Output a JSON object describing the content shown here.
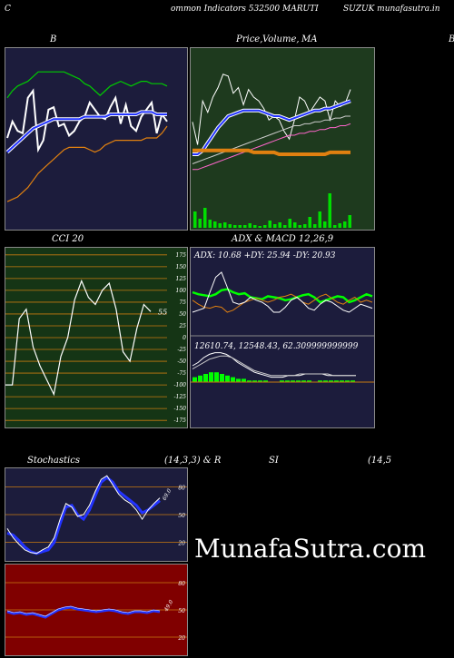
{
  "header": {
    "left": "C",
    "center": "ommon  Indicators 532500  MARUTI",
    "right": "SUZUK munafasutra.in"
  },
  "watermark": "MunafaSutra.com",
  "colors": {
    "panel_navy": "#1c1c3c",
    "panel_green": "#1e3a1e",
    "panel_darkgreen": "#153515",
    "panel_red": "#800000",
    "grid_orange": "#c87a10",
    "line_white": "#ffffff",
    "line_blue": "#2233ff",
    "line_green": "#00cc00",
    "line_orange": "#e08010"
  },
  "titles": {
    "bb": "B",
    "price": "Price,",
    "price_volume": "Volume,",
    "price_ma": "MA",
    "right_edge": "B",
    "cci": "CCI 20",
    "adx": "ADX  & MACD 12,26,9",
    "stoch": "Stochastics",
    "stoch_params": "(14,3,3) & R",
    "rsi": "SI",
    "rsi_params": "(14,5"
  },
  "chart_data": [
    {
      "type": "line",
      "name": "bollinger",
      "series": [
        {
          "color": "#ffffff",
          "values": [
            35,
            42,
            38,
            37,
            52,
            55,
            30,
            34,
            47,
            48,
            40,
            41,
            36,
            38,
            42,
            44,
            50,
            47,
            44,
            43,
            48,
            52,
            41,
            49,
            40,
            38,
            44,
            47,
            50,
            37,
            45,
            42
          ]
        },
        {
          "color": "#2233ff",
          "values": [
            29,
            31,
            33,
            35,
            37,
            39,
            40,
            41,
            42,
            43,
            43,
            43,
            43,
            43,
            43,
            44,
            44,
            44,
            44,
            44,
            45,
            45,
            45,
            45,
            45,
            45,
            46,
            46,
            46,
            45,
            45,
            45
          ]
        },
        {
          "color": "#00cc00",
          "values": [
            52,
            55,
            57,
            58,
            59,
            61,
            63,
            63,
            63,
            63,
            63,
            63,
            62,
            61,
            60,
            58,
            57,
            55,
            53,
            55,
            57,
            58,
            59,
            58,
            57,
            58,
            59,
            59,
            58,
            58,
            58,
            57
          ]
        },
        {
          "color": "#e08010",
          "values": [
            8,
            9,
            10,
            12,
            14,
            17,
            20,
            22,
            24,
            26,
            28,
            30,
            31,
            31,
            31,
            31,
            30,
            29,
            30,
            32,
            33,
            34,
            34,
            34,
            34,
            34,
            34,
            35,
            35,
            35,
            37,
            40
          ]
        }
      ]
    },
    {
      "type": "line",
      "name": "price_volume_ma",
      "series": [
        {
          "color": "#ffffff",
          "values": [
            47,
            35,
            58,
            52,
            60,
            65,
            72,
            71,
            62,
            65,
            56,
            64,
            60,
            58,
            54,
            48,
            50,
            48,
            42,
            38,
            48,
            60,
            58,
            52,
            56,
            60,
            58,
            48,
            58,
            55,
            57,
            64
          ]
        },
        {
          "color": "#2233ff",
          "values": [
            30,
            30,
            32,
            36,
            40,
            44,
            47,
            50,
            51,
            52,
            53,
            53,
            53,
            53,
            52,
            51,
            50,
            50,
            49,
            48,
            49,
            50,
            51,
            52,
            53,
            53,
            54,
            54,
            55,
            56,
            57,
            58
          ]
        },
        {
          "color": "#cccccc",
          "values": [
            25,
            26,
            27,
            28,
            29,
            30,
            31,
            32,
            33,
            34,
            35,
            36,
            37,
            38,
            39,
            40,
            41,
            42,
            43,
            44,
            45,
            45,
            46,
            46,
            47,
            47,
            48,
            48,
            49,
            49,
            50,
            50
          ]
        },
        {
          "color": "#ff66cc",
          "values": [
            22,
            22,
            23,
            24,
            25,
            26,
            27,
            28,
            29,
            30,
            31,
            32,
            33,
            34,
            35,
            36,
            37,
            38,
            39,
            40,
            40,
            41,
            41,
            42,
            42,
            43,
            43,
            44,
            44,
            45,
            45,
            46
          ]
        },
        {
          "color": "#e08010",
          "values": [
            32,
            32,
            32,
            32,
            32,
            32,
            32,
            32,
            32,
            32,
            32,
            32,
            31,
            31,
            31,
            31,
            31,
            30,
            30,
            30,
            30,
            30,
            30,
            30,
            30,
            30,
            30,
            31,
            31,
            31,
            31,
            31
          ]
        }
      ],
      "volume": [
        18,
        10,
        22,
        9,
        7,
        5,
        6,
        4,
        3,
        3,
        3,
        5,
        3,
        2,
        3,
        8,
        4,
        6,
        3,
        10,
        6,
        3,
        4,
        12,
        4,
        18,
        7,
        38,
        3,
        5,
        7,
        14
      ]
    },
    {
      "type": "line",
      "name": "cci",
      "ticks": [
        "175",
        "150",
        "125",
        "100",
        "75",
        "50",
        "25",
        "0",
        "-25",
        "-50",
        "-75",
        "-100",
        "-125",
        "-150",
        "-175"
      ],
      "ylim": [
        -190,
        190
      ],
      "last_label": "55",
      "values": [
        -100,
        -100,
        40,
        60,
        -20,
        -60,
        -90,
        -120,
        -40,
        0,
        80,
        120,
        85,
        70,
        100,
        115,
        60,
        -30,
        -50,
        20,
        70,
        55
      ]
    },
    {
      "type": "line",
      "name": "adx_macd",
      "adx_text": "ADX: 10.68  +DY: 25.94  -DY: 20.93",
      "macd_text": "12610.74,  12548.43,  62.309999999999",
      "adx_series": [
        {
          "color": "#00ff00",
          "values": [
            60,
            58,
            57,
            56,
            58,
            62,
            63,
            60,
            58,
            59,
            55,
            54,
            53,
            56,
            55,
            54,
            52,
            53,
            55,
            57,
            58,
            55,
            50,
            52,
            54,
            56,
            55,
            50,
            52,
            55,
            58,
            56
          ]
        },
        {
          "color": "#e08010",
          "values": [
            52,
            48,
            45,
            44,
            46,
            45,
            40,
            42,
            46,
            50,
            52,
            54,
            52,
            50,
            52,
            55,
            56,
            58,
            55,
            50,
            48,
            52,
            56,
            58,
            54,
            50,
            48,
            52,
            55,
            50,
            52,
            50
          ]
        },
        {
          "color": "#ffffff",
          "values": [
            40,
            42,
            44,
            60,
            75,
            80,
            65,
            50,
            48,
            50,
            55,
            52,
            50,
            46,
            40,
            40,
            45,
            52,
            55,
            50,
            44,
            42,
            48,
            52,
            50,
            46,
            42,
            40,
            44,
            48,
            46,
            44
          ]
        }
      ],
      "macd_series": [
        {
          "color": "#ffffff",
          "values": [
            10,
            12,
            15,
            17,
            18,
            18,
            17,
            15,
            12,
            10,
            8,
            6,
            5,
            4,
            3,
            3,
            3,
            4,
            4,
            4,
            5,
            5,
            5,
            5,
            4,
            4,
            4,
            4,
            4,
            4
          ]
        },
        {
          "color": "#cccccc",
          "values": [
            8,
            10,
            12,
            14,
            15,
            16,
            16,
            15,
            13,
            11,
            9,
            7,
            6,
            5,
            4,
            4,
            4,
            4,
            4,
            5,
            5,
            5,
            5,
            5,
            5,
            4,
            4,
            4,
            4,
            4
          ]
        }
      ],
      "macd_hist": [
        3,
        4,
        5,
        6,
        6,
        5,
        4,
        3,
        2,
        2,
        1,
        1,
        1,
        1,
        0,
        0,
        1,
        1,
        1,
        1,
        1,
        1,
        0,
        1,
        1,
        1,
        1,
        1,
        1,
        1
      ]
    },
    {
      "type": "line",
      "name": "stochastics",
      "ticks": [
        "80",
        "50",
        "20"
      ],
      "ylim": [
        0,
        100
      ],
      "last_label": "69.0",
      "series": [
        {
          "color": "#2233ff",
          "values": [
            30,
            28,
            22,
            15,
            10,
            8,
            10,
            12,
            20,
            40,
            58,
            60,
            50,
            45,
            55,
            70,
            85,
            90,
            85,
            75,
            70,
            65,
            60,
            52,
            55,
            60,
            65
          ]
        },
        {
          "color": "#ffffff",
          "values": [
            35,
            25,
            18,
            12,
            9,
            8,
            12,
            15,
            25,
            45,
            62,
            58,
            48,
            50,
            60,
            75,
            88,
            92,
            82,
            72,
            66,
            62,
            55,
            45,
            55,
            62,
            68
          ]
        }
      ]
    },
    {
      "type": "line",
      "name": "rsi",
      "ticks": [
        "80",
        "50",
        "20"
      ],
      "ylim": [
        0,
        100
      ],
      "last_label": "49.0",
      "values": [
        48,
        46,
        47,
        45,
        46,
        44,
        42,
        46,
        50,
        52,
        53,
        51,
        50,
        49,
        48,
        49,
        50,
        49,
        47,
        46,
        48,
        48,
        47,
        49,
        48
      ]
    }
  ]
}
